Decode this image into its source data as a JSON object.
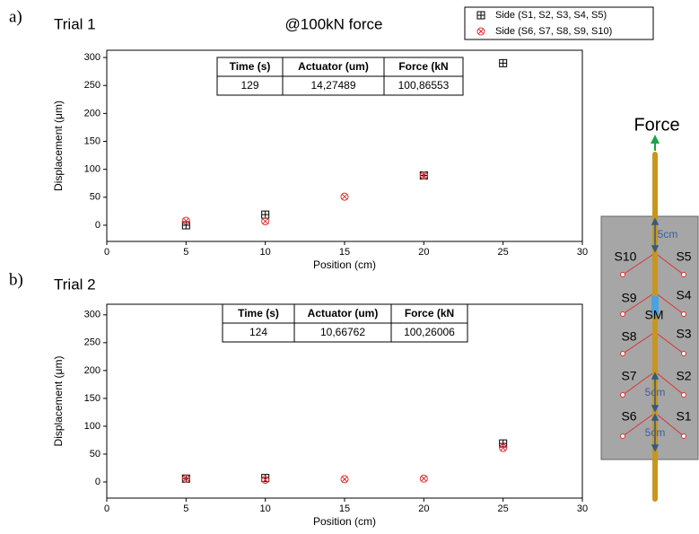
{
  "chart_data": [
    {
      "type": "scatter",
      "panel_label": "a)",
      "title": "Trial 1",
      "subtitle": "@100kN force",
      "x_label": "Position (cm)",
      "y_label": "Displacement (μm)",
      "x": [
        5,
        10,
        15,
        20,
        25
      ],
      "series": [
        {
          "name": "Side (S1, S2, S3, S4, S5)",
          "color": "#000000",
          "marker": "square-plus",
          "values": [
            0,
            19,
            null,
            89,
            290
          ]
        },
        {
          "name": "Side (S6, S7, S8, S9, S10)",
          "color": "#e03030",
          "marker": "circle-x",
          "values": [
            8,
            7,
            51,
            89,
            null
          ]
        }
      ],
      "xlim": [
        0,
        30
      ],
      "xticks": [
        0,
        5,
        10,
        15,
        20,
        25,
        30
      ],
      "ylim": [
        -29,
        313
      ],
      "yticks": [
        0,
        50,
        100,
        150,
        200,
        250,
        300
      ],
      "legend": "top-right",
      "table": {
        "header": [
          "Time (s)",
          "Actuator (um)",
          "Force (kN"
        ],
        "rows": [
          [
            "129",
            "14,27489",
            "100,86553"
          ]
        ]
      }
    },
    {
      "type": "scatter",
      "panel_label": "b)",
      "title": "Trial 2",
      "x_label": "Position (cm)",
      "y_label": "Displacement (μm)",
      "x": [
        5,
        10,
        15,
        20,
        25
      ],
      "series": [
        {
          "color": "#000000",
          "marker": "square-plus",
          "values": [
            6,
            7,
            null,
            null,
            69
          ]
        },
        {
          "color": "#e03030",
          "marker": "circle-x",
          "values": [
            6,
            4,
            5,
            6,
            61
          ]
        }
      ],
      "xlim": [
        0,
        30
      ],
      "xticks": [
        0,
        5,
        10,
        15,
        20,
        25,
        30
      ],
      "ylim": [
        -29,
        319
      ],
      "yticks": [
        0,
        50,
        100,
        150,
        200,
        250,
        300
      ],
      "table": {
        "header": [
          "Time (s)",
          "Actuator (um)",
          "Force (kN"
        ],
        "rows": [
          [
            "124",
            "10,66762",
            "100,26006"
          ]
        ]
      }
    }
  ],
  "diagram": {
    "title": "Force",
    "center": "SM",
    "spacings": [
      "5cm",
      "5cm",
      "5cm"
    ],
    "sensors": [
      "S1",
      "S2",
      "S3",
      "S4",
      "S5",
      "S6",
      "S7",
      "S8",
      "S9",
      "S10"
    ]
  }
}
